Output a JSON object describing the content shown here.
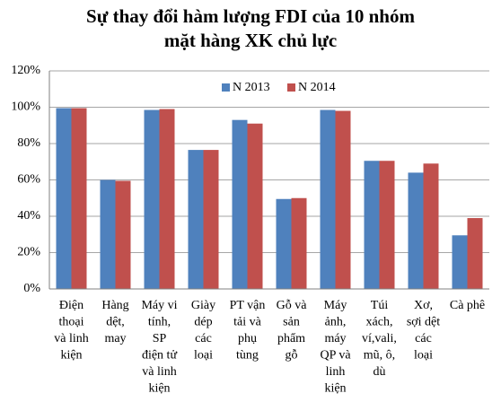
{
  "chart_data": {
    "type": "bar",
    "title": [
      "Sự thay đổi hàm lượng FDI của 10 nhóm",
      "mặt hàng XK chủ lực"
    ],
    "categories": [
      [
        "Điện",
        "thoại",
        "và linh",
        "kiện"
      ],
      [
        "Hàng",
        "dệt,",
        "may"
      ],
      [
        "Máy vi",
        "tính,",
        "SP",
        "điện tử",
        "và linh",
        "kiện"
      ],
      [
        "Giày",
        "dép",
        "các",
        "loại"
      ],
      [
        "PT vận",
        "tải và",
        "phụ",
        "tùng"
      ],
      [
        "Gỗ và",
        "sản",
        "phẩm",
        "gỗ"
      ],
      [
        "Máy",
        "ảnh,",
        "máy",
        "QP và",
        "linh",
        "kiện"
      ],
      [
        "Túi",
        "xách,",
        "ví,vali,",
        "mũ, ô,",
        "dù"
      ],
      [
        "Xơ,",
        "sợi dệt",
        "các",
        "loại"
      ],
      [
        "Cà phê"
      ]
    ],
    "series": [
      {
        "name": "N 2013",
        "color": "#4f81bd",
        "values": [
          99.5,
          60,
          98.5,
          76.5,
          93,
          49.5,
          98.5,
          70.5,
          64,
          29.5
        ]
      },
      {
        "name": "N 2014",
        "color": "#c0504d",
        "values": [
          99.5,
          59.5,
          99,
          76.5,
          91,
          50,
          98,
          70.5,
          69,
          39
        ]
      }
    ],
    "ylim": [
      0,
      120
    ],
    "yticks": [
      {
        "value": 0,
        "label": "0%"
      },
      {
        "value": 20,
        "label": "20%"
      },
      {
        "value": 40,
        "label": "40%"
      },
      {
        "value": 60,
        "label": "60%"
      },
      {
        "value": 80,
        "label": "80%"
      },
      {
        "value": 100,
        "label": "100%"
      },
      {
        "value": 120,
        "label": "120%"
      }
    ],
    "grid": true,
    "legend": "top"
  }
}
